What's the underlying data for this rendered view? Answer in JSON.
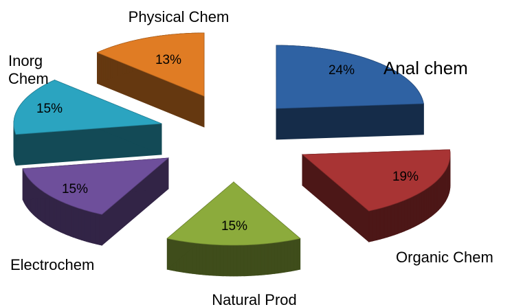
{
  "chart_data": {
    "type": "pie",
    "categories": [
      "Anal chem",
      "Organic Chem",
      "Natural Prod",
      "Electrochem",
      "Inorg Chem",
      "Physical Chem"
    ],
    "values": [
      24,
      19,
      15,
      15,
      15,
      13
    ],
    "value_labels": [
      "24%",
      "19%",
      "15%",
      "15%",
      "15%",
      "13%"
    ],
    "colors": [
      "#2f62a3",
      "#a83434",
      "#8cab3c",
      "#6e4f9b",
      "#2ba4c0",
      "#e07c24"
    ]
  }
}
